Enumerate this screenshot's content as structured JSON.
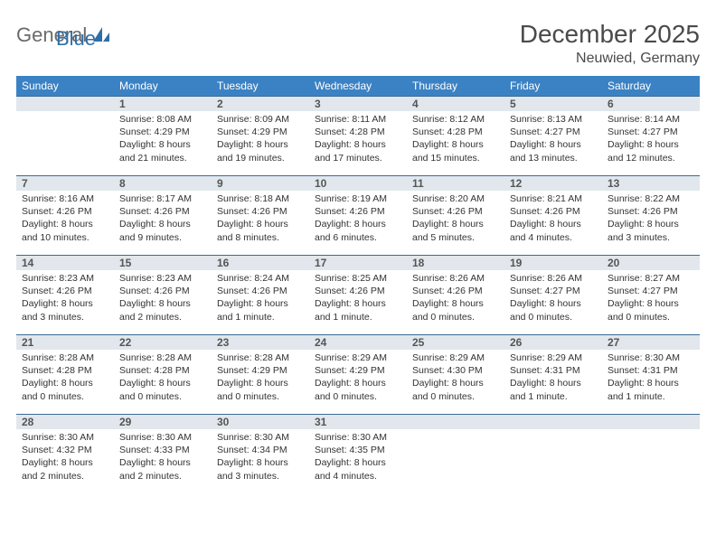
{
  "brand": {
    "general": "General",
    "blue": "Blue"
  },
  "title": "December 2025",
  "location": "Neuwied, Germany",
  "colors": {
    "header_bg": "#3b82c4",
    "header_text": "#ffffff",
    "daynum_bg": "#e1e7ec",
    "daynum_border": "#3b6b95",
    "body_text": "#333333",
    "title_text": "#4a4a4a",
    "logo_gray": "#6a6a6a",
    "logo_blue": "#2f6fa8"
  },
  "weekdays": [
    "Sunday",
    "Monday",
    "Tuesday",
    "Wednesday",
    "Thursday",
    "Friday",
    "Saturday"
  ],
  "weeks": [
    [
      {
        "n": "",
        "sunrise": "",
        "sunset": "",
        "daylight": ""
      },
      {
        "n": "1",
        "sunrise": "Sunrise: 8:08 AM",
        "sunset": "Sunset: 4:29 PM",
        "daylight": "Daylight: 8 hours and 21 minutes."
      },
      {
        "n": "2",
        "sunrise": "Sunrise: 8:09 AM",
        "sunset": "Sunset: 4:29 PM",
        "daylight": "Daylight: 8 hours and 19 minutes."
      },
      {
        "n": "3",
        "sunrise": "Sunrise: 8:11 AM",
        "sunset": "Sunset: 4:28 PM",
        "daylight": "Daylight: 8 hours and 17 minutes."
      },
      {
        "n": "4",
        "sunrise": "Sunrise: 8:12 AM",
        "sunset": "Sunset: 4:28 PM",
        "daylight": "Daylight: 8 hours and 15 minutes."
      },
      {
        "n": "5",
        "sunrise": "Sunrise: 8:13 AM",
        "sunset": "Sunset: 4:27 PM",
        "daylight": "Daylight: 8 hours and 13 minutes."
      },
      {
        "n": "6",
        "sunrise": "Sunrise: 8:14 AM",
        "sunset": "Sunset: 4:27 PM",
        "daylight": "Daylight: 8 hours and 12 minutes."
      }
    ],
    [
      {
        "n": "7",
        "sunrise": "Sunrise: 8:16 AM",
        "sunset": "Sunset: 4:26 PM",
        "daylight": "Daylight: 8 hours and 10 minutes."
      },
      {
        "n": "8",
        "sunrise": "Sunrise: 8:17 AM",
        "sunset": "Sunset: 4:26 PM",
        "daylight": "Daylight: 8 hours and 9 minutes."
      },
      {
        "n": "9",
        "sunrise": "Sunrise: 8:18 AM",
        "sunset": "Sunset: 4:26 PM",
        "daylight": "Daylight: 8 hours and 8 minutes."
      },
      {
        "n": "10",
        "sunrise": "Sunrise: 8:19 AM",
        "sunset": "Sunset: 4:26 PM",
        "daylight": "Daylight: 8 hours and 6 minutes."
      },
      {
        "n": "11",
        "sunrise": "Sunrise: 8:20 AM",
        "sunset": "Sunset: 4:26 PM",
        "daylight": "Daylight: 8 hours and 5 minutes."
      },
      {
        "n": "12",
        "sunrise": "Sunrise: 8:21 AM",
        "sunset": "Sunset: 4:26 PM",
        "daylight": "Daylight: 8 hours and 4 minutes."
      },
      {
        "n": "13",
        "sunrise": "Sunrise: 8:22 AM",
        "sunset": "Sunset: 4:26 PM",
        "daylight": "Daylight: 8 hours and 3 minutes."
      }
    ],
    [
      {
        "n": "14",
        "sunrise": "Sunrise: 8:23 AM",
        "sunset": "Sunset: 4:26 PM",
        "daylight": "Daylight: 8 hours and 3 minutes."
      },
      {
        "n": "15",
        "sunrise": "Sunrise: 8:23 AM",
        "sunset": "Sunset: 4:26 PM",
        "daylight": "Daylight: 8 hours and 2 minutes."
      },
      {
        "n": "16",
        "sunrise": "Sunrise: 8:24 AM",
        "sunset": "Sunset: 4:26 PM",
        "daylight": "Daylight: 8 hours and 1 minute."
      },
      {
        "n": "17",
        "sunrise": "Sunrise: 8:25 AM",
        "sunset": "Sunset: 4:26 PM",
        "daylight": "Daylight: 8 hours and 1 minute."
      },
      {
        "n": "18",
        "sunrise": "Sunrise: 8:26 AM",
        "sunset": "Sunset: 4:26 PM",
        "daylight": "Daylight: 8 hours and 0 minutes."
      },
      {
        "n": "19",
        "sunrise": "Sunrise: 8:26 AM",
        "sunset": "Sunset: 4:27 PM",
        "daylight": "Daylight: 8 hours and 0 minutes."
      },
      {
        "n": "20",
        "sunrise": "Sunrise: 8:27 AM",
        "sunset": "Sunset: 4:27 PM",
        "daylight": "Daylight: 8 hours and 0 minutes."
      }
    ],
    [
      {
        "n": "21",
        "sunrise": "Sunrise: 8:28 AM",
        "sunset": "Sunset: 4:28 PM",
        "daylight": "Daylight: 8 hours and 0 minutes."
      },
      {
        "n": "22",
        "sunrise": "Sunrise: 8:28 AM",
        "sunset": "Sunset: 4:28 PM",
        "daylight": "Daylight: 8 hours and 0 minutes."
      },
      {
        "n": "23",
        "sunrise": "Sunrise: 8:28 AM",
        "sunset": "Sunset: 4:29 PM",
        "daylight": "Daylight: 8 hours and 0 minutes."
      },
      {
        "n": "24",
        "sunrise": "Sunrise: 8:29 AM",
        "sunset": "Sunset: 4:29 PM",
        "daylight": "Daylight: 8 hours and 0 minutes."
      },
      {
        "n": "25",
        "sunrise": "Sunrise: 8:29 AM",
        "sunset": "Sunset: 4:30 PM",
        "daylight": "Daylight: 8 hours and 0 minutes."
      },
      {
        "n": "26",
        "sunrise": "Sunrise: 8:29 AM",
        "sunset": "Sunset: 4:31 PM",
        "daylight": "Daylight: 8 hours and 1 minute."
      },
      {
        "n": "27",
        "sunrise": "Sunrise: 8:30 AM",
        "sunset": "Sunset: 4:31 PM",
        "daylight": "Daylight: 8 hours and 1 minute."
      }
    ],
    [
      {
        "n": "28",
        "sunrise": "Sunrise: 8:30 AM",
        "sunset": "Sunset: 4:32 PM",
        "daylight": "Daylight: 8 hours and 2 minutes."
      },
      {
        "n": "29",
        "sunrise": "Sunrise: 8:30 AM",
        "sunset": "Sunset: 4:33 PM",
        "daylight": "Daylight: 8 hours and 2 minutes."
      },
      {
        "n": "30",
        "sunrise": "Sunrise: 8:30 AM",
        "sunset": "Sunset: 4:34 PM",
        "daylight": "Daylight: 8 hours and 3 minutes."
      },
      {
        "n": "31",
        "sunrise": "Sunrise: 8:30 AM",
        "sunset": "Sunset: 4:35 PM",
        "daylight": "Daylight: 8 hours and 4 minutes."
      },
      {
        "n": "",
        "sunrise": "",
        "sunset": "",
        "daylight": ""
      },
      {
        "n": "",
        "sunrise": "",
        "sunset": "",
        "daylight": ""
      },
      {
        "n": "",
        "sunrise": "",
        "sunset": "",
        "daylight": ""
      }
    ]
  ]
}
